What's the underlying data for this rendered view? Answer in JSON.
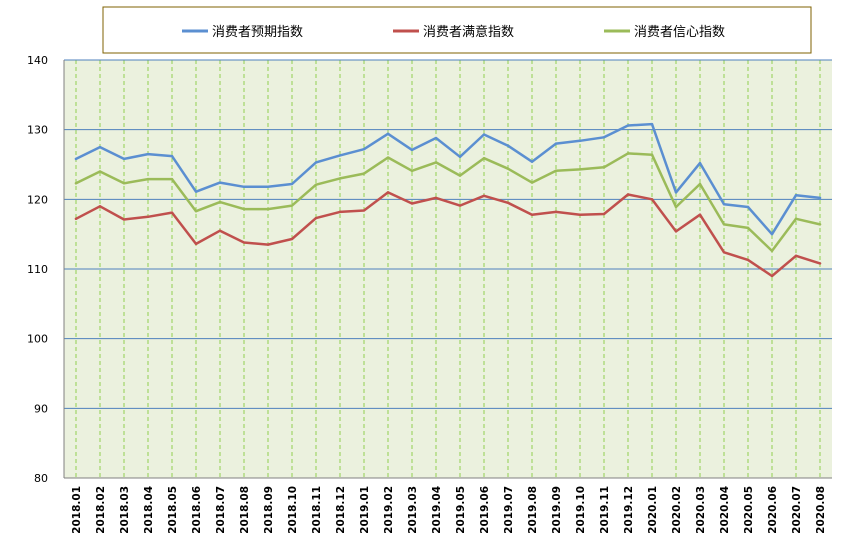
{
  "chart_data": {
    "type": "line",
    "title": "",
    "xlabel": "",
    "ylabel": "",
    "ylim": [
      80,
      140
    ],
    "yticks": [
      80,
      90,
      100,
      110,
      120,
      130,
      140
    ],
    "grid": true,
    "legend_position": "top",
    "x": [
      "2018.01",
      "2018.02",
      "2018.03",
      "2018.04",
      "2018.05",
      "2018.06",
      "2018.07",
      "2018.08",
      "2018.09",
      "2018.10",
      "2018.11",
      "2018.12",
      "2019.01",
      "2019.02",
      "2019.03",
      "2019.04",
      "2019.05",
      "2019.06",
      "2019.07",
      "2019.08",
      "2019.09",
      "2019.10",
      "2019.11",
      "2019.12",
      "2020.01",
      "2020.02",
      "2020.03",
      "2020.04",
      "2020.05",
      "2020.06",
      "2020.07",
      "2020.08"
    ],
    "series": [
      {
        "name": "消费者预期指数",
        "color": "#5b8fd1",
        "values": [
          125.8,
          127.5,
          125.8,
          126.5,
          126.2,
          121.1,
          122.4,
          121.8,
          121.8,
          122.2,
          125.3,
          126.3,
          127.2,
          129.4,
          127.1,
          128.8,
          126.1,
          129.3,
          127.7,
          125.4,
          128.0,
          128.4,
          128.9,
          130.6,
          130.8,
          121.0,
          125.2,
          119.3,
          118.9,
          115.0,
          120.6,
          120.2
        ]
      },
      {
        "name": "消费者满意指数",
        "color": "#c0504d",
        "values": [
          117.2,
          119.0,
          117.1,
          117.5,
          118.1,
          113.6,
          115.5,
          113.8,
          113.5,
          114.3,
          117.3,
          118.2,
          118.4,
          121.0,
          119.4,
          120.2,
          119.1,
          120.5,
          119.5,
          117.8,
          118.2,
          117.8,
          117.9,
          120.7,
          120.0,
          115.4,
          117.8,
          112.4,
          111.3,
          109.0,
          111.9,
          110.8
        ]
      },
      {
        "name": "消费者信心指数",
        "color": "#9bbb59",
        "values": [
          122.3,
          124.0,
          122.3,
          122.9,
          122.9,
          118.3,
          119.6,
          118.6,
          118.6,
          119.1,
          122.1,
          123.0,
          123.7,
          126.0,
          124.1,
          125.3,
          123.4,
          125.9,
          124.4,
          122.4,
          124.1,
          124.3,
          124.6,
          126.6,
          126.4,
          118.9,
          122.2,
          116.4,
          115.9,
          112.6,
          117.2,
          116.4
        ]
      }
    ]
  },
  "colors": {
    "plot_background": "#ebf1de",
    "grid_color": "#4f81bd",
    "vertical_grid_color": "#92d050",
    "legend_border": "#7f6000"
  }
}
